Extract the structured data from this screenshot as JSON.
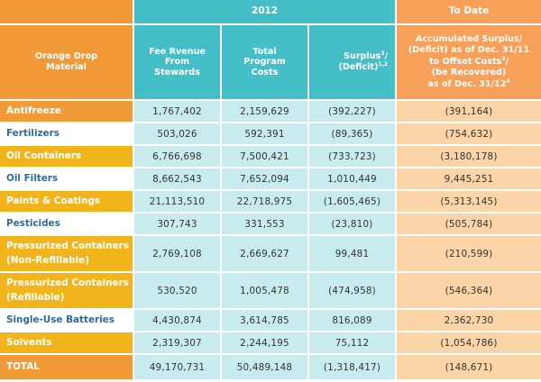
{
  "colors": {
    "orange": "#f29a37",
    "orange_light": "#fbd5a7",
    "orange_header": "#f6a05a",
    "teal": "#44bfc7",
    "teal_light": "#c8ebed",
    "yellow": "#f2b41b",
    "blue_dark": "#2e6aa0",
    "white": "#ffffff"
  },
  "header": {
    "group_2012": "2012",
    "group_to_date": "To Date",
    "col_material": "Orange Drop Material",
    "col_fee_revenue": "Fee Rvenue From Stewards",
    "col_total_costs": "Total Program Costs",
    "col_surplus_text": "Surplus",
    "col_surplus_sup": "3",
    "col_surplus_text2": "/ (Deficit)",
    "col_surplus_sup2": "1,2",
    "col_accumulated_line1": "Accumulated Surplus/",
    "col_accumulated_line2": "(Deficit) as of Dec. 31/11",
    "col_accumulated_line3a": "to Offset Costs",
    "col_accumulated_sup": "3",
    "col_accumulated_line3b": "/",
    "col_accumulated_line4": "(be Recovered)",
    "col_accumulated_line5a": "as of Dec. 31/12",
    "col_accumulated_sup2": "4"
  },
  "rows": [
    {
      "material": "Antifreeze",
      "fee": "1,767,402",
      "costs": "2,159,629",
      "surplus": "(392,227)",
      "accumulated": "(391,164)"
    },
    {
      "material": "Fertilizers",
      "fee": "503,026",
      "costs": "592,391",
      "surplus": "(89,365)",
      "accumulated": "(754,632)"
    },
    {
      "material": "Oil Containers",
      "fee": "6,766,698",
      "costs": "7,500,421",
      "surplus": "(733,723)",
      "accumulated": "(3,180,178)"
    },
    {
      "material": "Oil Filters",
      "fee": "8,662,543",
      "costs": "7,652,094",
      "surplus": "1,010,449",
      "accumulated": "9,445,251"
    },
    {
      "material": "Paints & Coatings",
      "fee": "21,113,510",
      "costs": "22,718,975",
      "surplus": "(1,605,465)",
      "accumulated": "(5,313,145)"
    },
    {
      "material": "Pesticides",
      "fee": "307,743",
      "costs": "331,553",
      "surplus": "(23,810)",
      "accumulated": "(505,784)"
    },
    {
      "material_line1": "Pressurized Containers",
      "material_line2": "(Non-Refillable)",
      "fee": "2,769,108",
      "costs": "2,669,627",
      "surplus": "99,481",
      "accumulated": "(210,599)"
    },
    {
      "material_line1": "Pressurized Containers",
      "material_line2": "(Refillable)",
      "fee": "530,520",
      "costs": "1,005,478",
      "surplus": "(474,958)",
      "accumulated": "(546,364)"
    },
    {
      "material": "Single-Use Batteries",
      "fee": "4,430,874",
      "costs": "3,614,785",
      "surplus": "816,089",
      "accumulated": "2,362,730"
    },
    {
      "material": "Solvents",
      "fee": "2,319,307",
      "costs": "2,244,195",
      "surplus": "75,112",
      "accumulated": "(1,054,786)"
    }
  ],
  "total": {
    "material": "TOTAL",
    "fee": "49,170,731",
    "costs": "50,489,148",
    "surplus": "(1,318,417)",
    "accumulated": "(148,671)"
  }
}
